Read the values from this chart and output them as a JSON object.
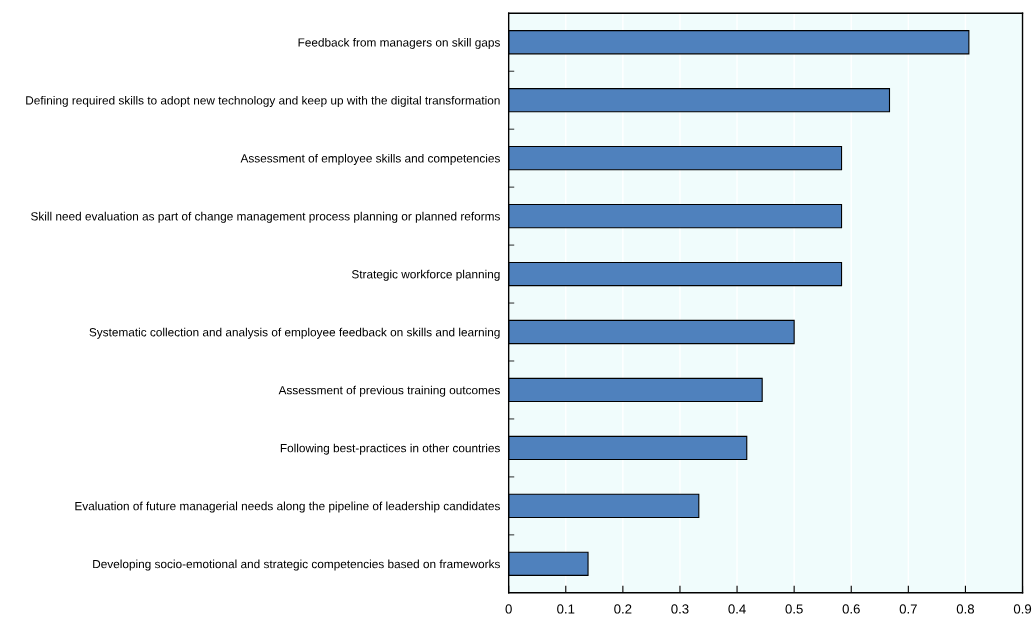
{
  "chart_data": {
    "type": "bar",
    "orientation": "horizontal",
    "categories": [
      "Feedback from managers on skill gaps",
      "Defining required skills to adopt new technology and keep up with the digital transformation",
      "Assessment of employee skills and competencies",
      "Skill need evaluation as part of change management process planning or planned reforms",
      "Strategic workforce planning",
      "Systematic collection and analysis of employee feedback on skills and learning",
      "Assessment of previous training outcomes",
      "Following best-practices in other countries",
      "Evaluation of future managerial needs along the pipeline of leadership candidates",
      "Developing socio-emotional and strategic competencies based on frameworks"
    ],
    "values": [
      0.806,
      0.667,
      0.583,
      0.583,
      0.583,
      0.5,
      0.444,
      0.417,
      0.333,
      0.139
    ],
    "color": "#4f81bd",
    "xlim": [
      0,
      0.9
    ],
    "xticks": [
      0,
      0.1,
      0.2,
      0.3,
      0.4,
      0.5,
      0.6,
      0.7,
      0.8,
      0.9
    ],
    "grid": "x",
    "legend": false
  }
}
